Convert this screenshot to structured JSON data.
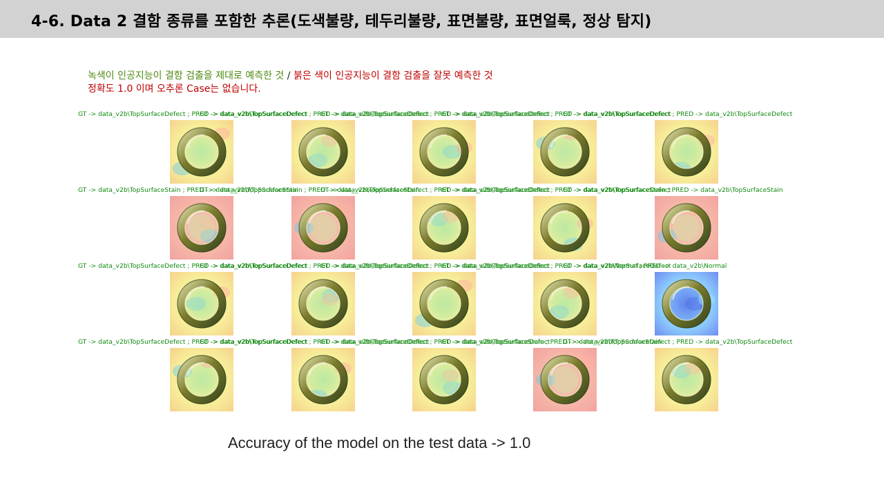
{
  "slide": {
    "title": "4-6. Data 2 결함 종류를 포함한 추론(도색불량, 테두리불량, 표면불량, 표면얼룩, 정상 탐지)",
    "note": {
      "green_text": "녹색이 인공지능이 결함 검출을 제대로 예측한 것",
      "separator": " / ",
      "red_text": "붉은 색이 인공지능이 결함 검출을 잘못 예측한 것",
      "line2": "정확도 1.0 이며 오추론 Case는 없습니다."
    },
    "accuracy_caption": "Accuracy of the model on the test data -> 1.0",
    "colors": {
      "title_bar": "#d2d2d2",
      "label_green": "#118811",
      "note_red": "#c00000",
      "note_green": "#4f8a10"
    }
  },
  "grid": {
    "rows": [
      {
        "cells": [
          {
            "label": "GT -> data_v2b\\TopSurfaceDefect ; PRED -> data_v2b\\TopSurfaceDefect",
            "heat": "warm"
          },
          {
            "label": "GT -> data_v2b\\TopSurfaceDefect ; PRED -> data_v2b\\TopSurfaceDefect",
            "heat": "warm"
          },
          {
            "label": "GT -> data_v2b\\TopSurfaceDefect ; PRED -> data_v2b\\TopSurfaceDefect",
            "heat": "warm"
          },
          {
            "label": "GT -> data_v2b\\TopSurfaceDefect ; PRED -> data_v2b\\TopSurfaceDefect",
            "heat": "warm"
          },
          {
            "label": "GT -> data_v2b\\TopSurfaceDefect ; PRED -> data_v2b\\TopSurfaceDefect",
            "heat": "warm"
          }
        ]
      },
      {
        "cells": [
          {
            "label": "GT -> data_v2b\\TopSurfaceStain ; PRED -> data_v2b\\TopSurfaceStain",
            "heat": "red"
          },
          {
            "label": "GT -> data_v2b\\TopSurfaceStain ; PRED -> data_v2b\\TopSurfaceStain",
            "heat": "red"
          },
          {
            "label": "GT -> data_v2b\\TopSurfaceDefect ; PRED -> data_v2b\\TopSurfaceDefect",
            "heat": "warm"
          },
          {
            "label": "GT -> data_v2b\\TopSurfaceDefect ; PRED -> data_v2b\\TopSurfaceDefect",
            "heat": "warm"
          },
          {
            "label": "GT -> data_v2b\\TopSurfaceStain ; PRED -> data_v2b\\TopSurfaceStain",
            "heat": "red"
          }
        ]
      },
      {
        "cells": [
          {
            "label": "GT -> data_v2b\\TopSurfaceDefect ; PRED -> data_v2b\\TopSurfaceDefect",
            "heat": "warm"
          },
          {
            "label": "GT -> data_v2b\\TopSurfaceDefect ; PRED -> data_v2b\\TopSurfaceDefect",
            "heat": "warm"
          },
          {
            "label": "GT -> data_v2b\\TopSurfaceDefect ; PRED -> data_v2b\\TopSurfaceDefect",
            "heat": "warm"
          },
          {
            "label": "GT -> data_v2b\\TopSurfaceDefect ; PRED -> data_v2b\\TopSurfaceDefect",
            "heat": "warm"
          },
          {
            "label": "GT -> data_v2b\\Normal ; PRED -> data_v2b\\Normal",
            "heat": "cool"
          }
        ]
      },
      {
        "cells": [
          {
            "label": "GT -> data_v2b\\TopSurfaceDefect ; PRED -> data_v2b\\TopSurfaceDefect",
            "heat": "warm"
          },
          {
            "label": "GT -> data_v2b\\TopSurfaceDefect ; PRED -> data_v2b\\TopSurfaceDefect",
            "heat": "warm"
          },
          {
            "label": "GT -> data_v2b\\TopSurfaceDefect ; PRED -> data_v2b\\TopSurfaceDefect",
            "heat": "warm"
          },
          {
            "label": "GT -> data_v2b\\TopSurfaceStain ; PRED -> data_v2b\\TopSurfaceStain",
            "heat": "red"
          },
          {
            "label": "GT -> data_v2b\\TopSurfaceDefect ; PRED -> data_v2b\\TopSurfaceDefect",
            "heat": "warm"
          }
        ]
      }
    ]
  }
}
